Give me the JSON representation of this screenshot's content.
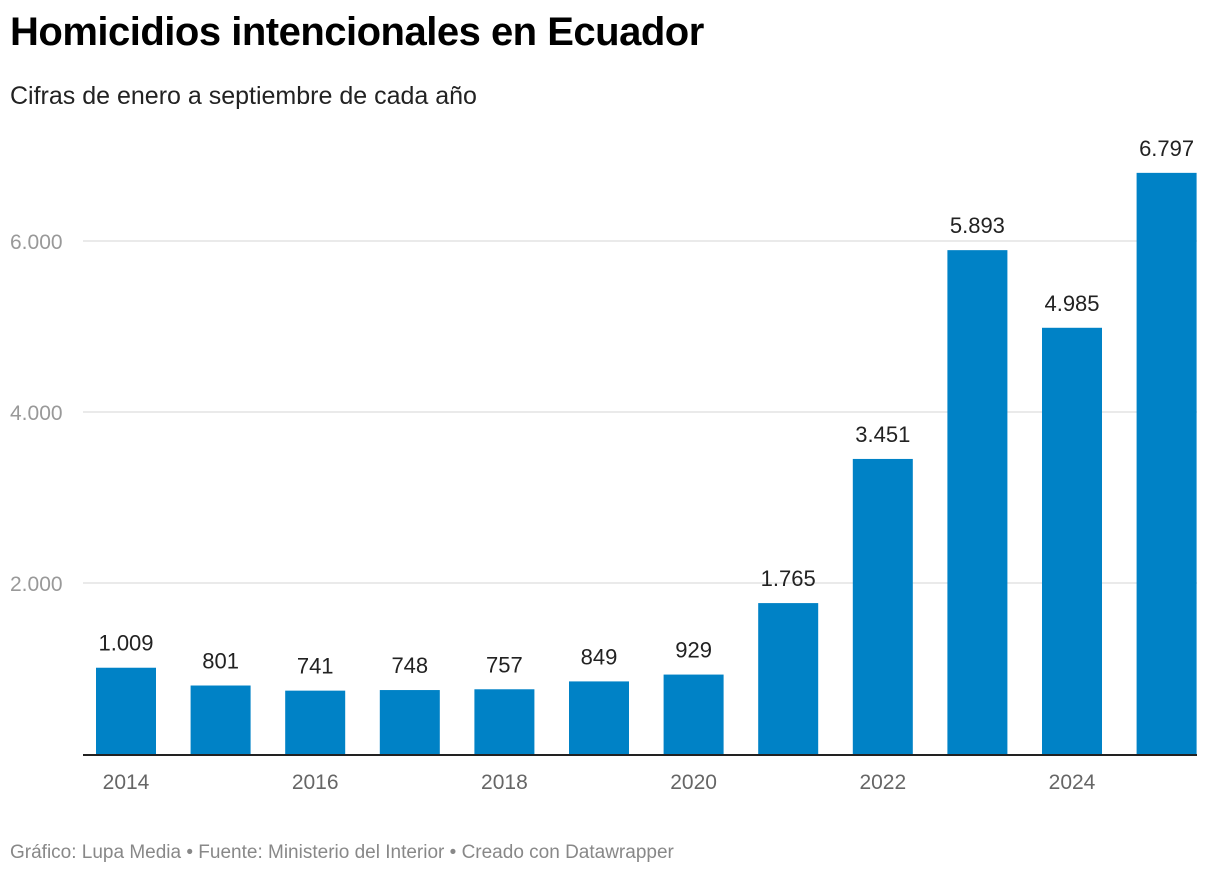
{
  "chart_data": {
    "type": "bar",
    "title": "Homicidios intencionales en Ecuador",
    "subtitle": "Cifras de enero a septiembre de cada año",
    "categories": [
      "2014",
      "2015",
      "2016",
      "2017",
      "2018",
      "2019",
      "2020",
      "2021",
      "2022",
      "2023",
      "2024",
      "2025"
    ],
    "values": [
      1009,
      801,
      741,
      748,
      757,
      849,
      929,
      1765,
      3451,
      5893,
      4985,
      6797
    ],
    "value_labels": [
      "1.009",
      "801",
      "741",
      "748",
      "757",
      "849",
      "929",
      "1.765",
      "3.451",
      "5.893",
      "4.985",
      "6.797"
    ],
    "x_tick_labels": [
      "2014",
      "",
      "2016",
      "",
      "2018",
      "",
      "2020",
      "",
      "2022",
      "",
      "2024",
      ""
    ],
    "y_ticks": [
      2000,
      4000,
      6000
    ],
    "y_tick_labels": [
      "2.000",
      "4.000",
      "6.000"
    ],
    "ylim": [
      0,
      6797
    ],
    "xlabel": "",
    "ylabel": "",
    "grid": true,
    "bar_color": "#0082c6",
    "footer": "Gráfico: Lupa Media • Fuente: Ministerio del Interior • Creado con Datawrapper"
  }
}
